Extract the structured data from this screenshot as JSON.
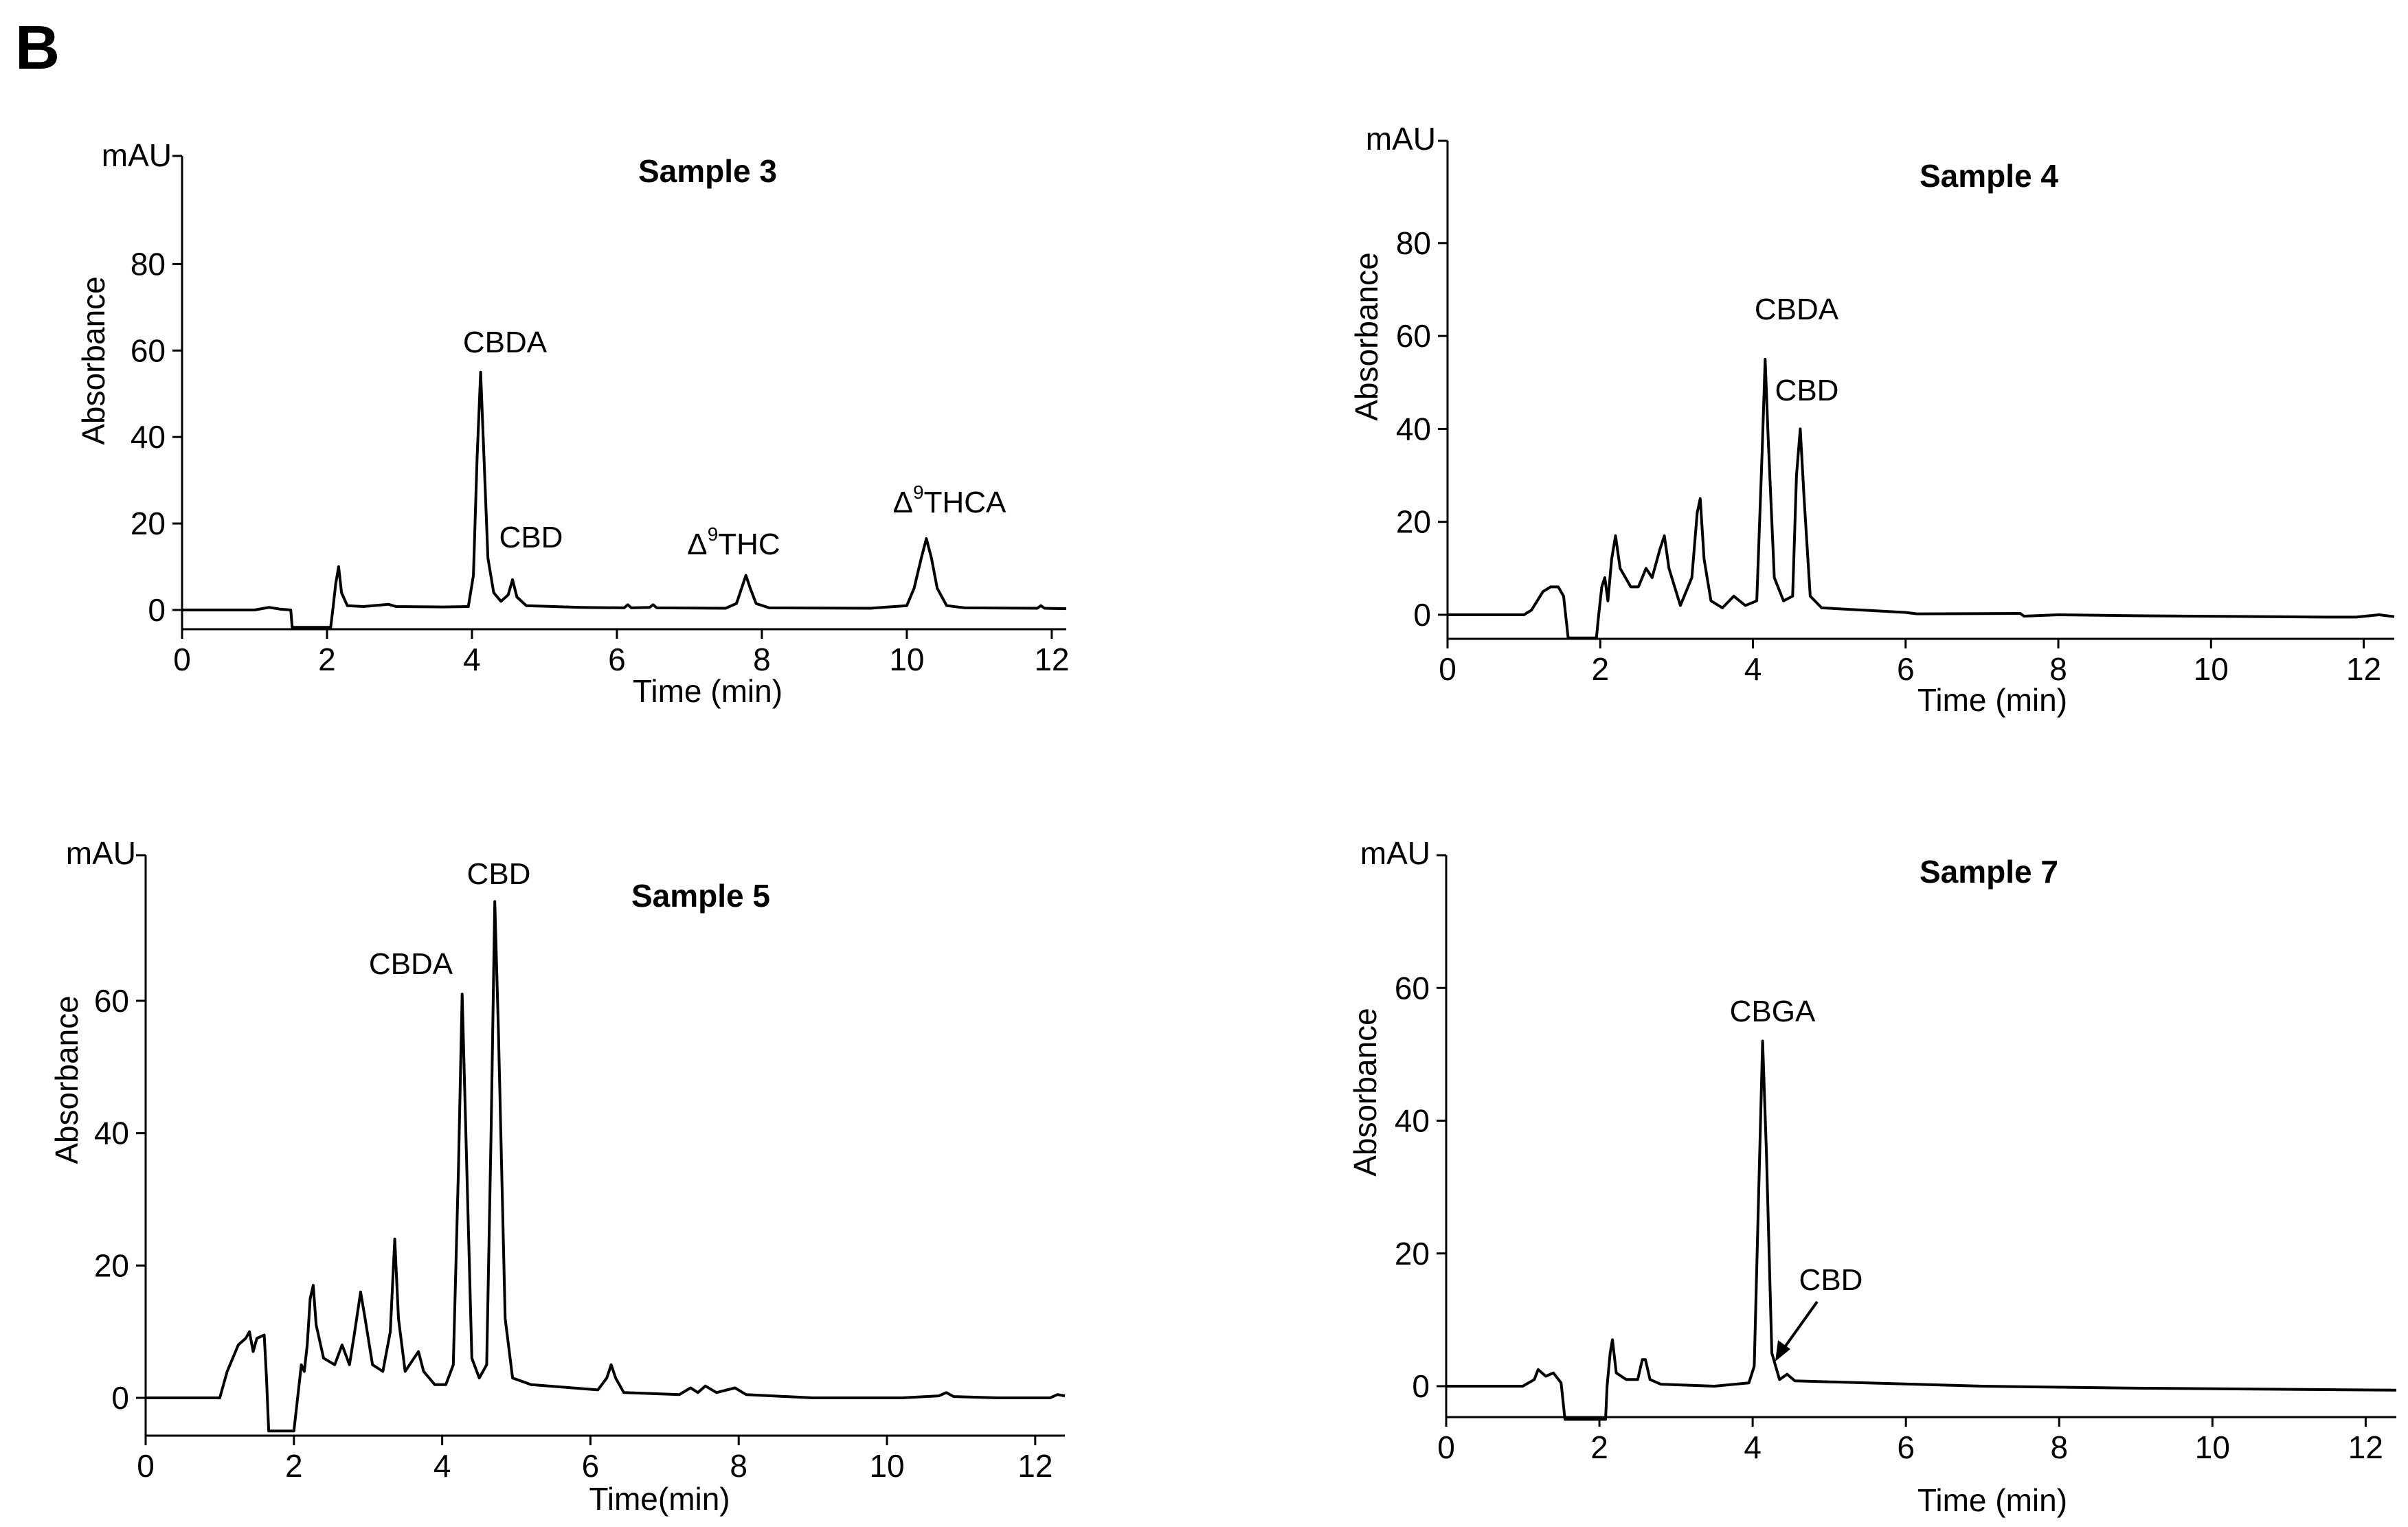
{
  "panel_letter": "B",
  "chart_data": [
    {
      "type": "line",
      "title": "Sample 3",
      "ylabel": "Absorbance",
      "yunit": "mAU",
      "xlabel": "Time (min)",
      "xlim": [
        0,
        12.2
      ],
      "ylim": [
        -4,
        105
      ],
      "xticks": [
        0,
        2,
        4,
        6,
        8,
        10,
        12
      ],
      "yticks": [
        0,
        20,
        40,
        60,
        80
      ],
      "series": [
        {
          "values": [
            [
              0,
              0
            ],
            [
              1.0,
              0
            ],
            [
              1.1,
              0.3
            ],
            [
              1.2,
              0.6
            ],
            [
              1.35,
              0.2
            ],
            [
              1.5,
              0
            ],
            [
              1.52,
              -4
            ],
            [
              2.05,
              -4
            ],
            [
              2.08,
              0
            ],
            [
              2.12,
              6
            ],
            [
              2.16,
              10
            ],
            [
              2.2,
              4
            ],
            [
              2.28,
              1
            ],
            [
              2.5,
              0.8
            ],
            [
              2.85,
              1.3
            ],
            [
              2.95,
              0.8
            ],
            [
              3.6,
              0.7
            ],
            [
              3.95,
              0.8
            ],
            [
              4.02,
              8
            ],
            [
              4.07,
              35
            ],
            [
              4.12,
              55
            ],
            [
              4.16,
              38
            ],
            [
              4.22,
              12
            ],
            [
              4.3,
              4
            ],
            [
              4.4,
              2
            ],
            [
              4.5,
              3.5
            ],
            [
              4.56,
              7
            ],
            [
              4.62,
              3
            ],
            [
              4.75,
              1
            ],
            [
              5.5,
              0.6
            ],
            [
              6.1,
              0.5
            ],
            [
              6.15,
              1.2
            ],
            [
              6.2,
              0.5
            ],
            [
              6.45,
              0.6
            ],
            [
              6.5,
              1.2
            ],
            [
              6.55,
              0.5
            ],
            [
              7.5,
              0.4
            ],
            [
              7.65,
              1.5
            ],
            [
              7.72,
              5
            ],
            [
              7.78,
              8
            ],
            [
              7.84,
              5
            ],
            [
              7.92,
              1.5
            ],
            [
              8.1,
              0.5
            ],
            [
              9.5,
              0.4
            ],
            [
              10.0,
              1
            ],
            [
              10.1,
              5
            ],
            [
              10.2,
              12
            ],
            [
              10.27,
              16.5
            ],
            [
              10.34,
              12
            ],
            [
              10.42,
              5
            ],
            [
              10.55,
              1
            ],
            [
              10.8,
              0.5
            ],
            [
              11.8,
              0.4
            ],
            [
              11.85,
              1
            ],
            [
              11.9,
              0.4
            ],
            [
              12.2,
              0.3
            ]
          ]
        }
      ],
      "annotations": [
        {
          "text": "CBDA",
          "x": 4.12,
          "y": 55
        },
        {
          "text": "CBD",
          "x": 4.58,
          "y": 7
        },
        {
          "text": "Δ9THC",
          "x": 7.8,
          "y": 8
        },
        {
          "text": "Δ9THCA",
          "x": 10.27,
          "y": 16.5
        }
      ]
    },
    {
      "type": "line",
      "title": "Sample 4",
      "ylabel": "Absorbance",
      "yunit": "mAU",
      "xlabel": "Time (min)",
      "xlim": [
        0,
        12.4
      ],
      "ylim": [
        -5,
        102
      ],
      "xticks": [
        0,
        2,
        4,
        6,
        8,
        10,
        12
      ],
      "yticks": [
        0,
        20,
        40,
        60,
        80
      ],
      "series": [
        {
          "values": [
            [
              0,
              0
            ],
            [
              1.0,
              0
            ],
            [
              1.1,
              1
            ],
            [
              1.25,
              5
            ],
            [
              1.35,
              6
            ],
            [
              1.45,
              6
            ],
            [
              1.52,
              4
            ],
            [
              1.58,
              -5
            ],
            [
              1.95,
              -5
            ],
            [
              1.98,
              0
            ],
            [
              2.02,
              6
            ],
            [
              2.06,
              8
            ],
            [
              2.1,
              3
            ],
            [
              2.15,
              12
            ],
            [
              2.2,
              17
            ],
            [
              2.26,
              10
            ],
            [
              2.4,
              6
            ],
            [
              2.5,
              6
            ],
            [
              2.6,
              10
            ],
            [
              2.68,
              8
            ],
            [
              2.78,
              14
            ],
            [
              2.84,
              17
            ],
            [
              2.9,
              10
            ],
            [
              3.05,
              2
            ],
            [
              3.2,
              8
            ],
            [
              3.27,
              22
            ],
            [
              3.31,
              25
            ],
            [
              3.36,
              12
            ],
            [
              3.45,
              3
            ],
            [
              3.6,
              1.5
            ],
            [
              3.75,
              4
            ],
            [
              3.9,
              2
            ],
            [
              4.05,
              3
            ],
            [
              4.12,
              35
            ],
            [
              4.16,
              55
            ],
            [
              4.2,
              38
            ],
            [
              4.28,
              8
            ],
            [
              4.4,
              3
            ],
            [
              4.52,
              4
            ],
            [
              4.57,
              30
            ],
            [
              4.62,
              40
            ],
            [
              4.67,
              25
            ],
            [
              4.75,
              4
            ],
            [
              4.9,
              1.5
            ],
            [
              6.0,
              0.5
            ],
            [
              6.15,
              0.2
            ],
            [
              7.5,
              0.3
            ],
            [
              7.55,
              -0.3
            ],
            [
              8.0,
              0
            ],
            [
              9.0,
              -0.2
            ],
            [
              11.5,
              -0.5
            ],
            [
              11.9,
              -0.5
            ],
            [
              12.2,
              0
            ],
            [
              12.4,
              -0.4
            ]
          ]
        }
      ],
      "annotations": [
        {
          "text": "CBDA",
          "x": 4.16,
          "y": 55
        },
        {
          "text": "CBD",
          "x": 4.62,
          "y": 40
        }
      ]
    },
    {
      "type": "line",
      "title": "Sample 5",
      "ylabel": "Absorbance",
      "yunit": "mAU",
      "xlabel": "Time(min)",
      "xlim": [
        0,
        12.4
      ],
      "ylim": [
        -5,
        82
      ],
      "xticks": [
        0,
        2,
        4,
        6,
        8,
        10,
        12
      ],
      "yticks": [
        0,
        20,
        40,
        60
      ],
      "series": [
        {
          "values": [
            [
              0,
              0
            ],
            [
              1.0,
              0
            ],
            [
              1.1,
              4
            ],
            [
              1.25,
              8
            ],
            [
              1.35,
              9
            ],
            [
              1.4,
              10
            ],
            [
              1.45,
              7
            ],
            [
              1.5,
              9
            ],
            [
              1.6,
              9.5
            ],
            [
              1.63,
              3
            ],
            [
              1.66,
              -5
            ],
            [
              2.0,
              -5
            ],
            [
              2.05,
              0
            ],
            [
              2.1,
              5
            ],
            [
              2.14,
              4
            ],
            [
              2.18,
              8
            ],
            [
              2.22,
              15
            ],
            [
              2.26,
              17
            ],
            [
              2.3,
              11
            ],
            [
              2.4,
              6
            ],
            [
              2.55,
              5
            ],
            [
              2.65,
              8
            ],
            [
              2.75,
              5
            ],
            [
              2.82,
              10
            ],
            [
              2.9,
              16
            ],
            [
              2.96,
              12
            ],
            [
              3.06,
              5
            ],
            [
              3.2,
              4
            ],
            [
              3.3,
              10
            ],
            [
              3.36,
              24
            ],
            [
              3.41,
              12
            ],
            [
              3.5,
              4
            ],
            [
              3.62,
              6
            ],
            [
              3.68,
              7
            ],
            [
              3.75,
              4
            ],
            [
              3.9,
              2
            ],
            [
              4.05,
              2
            ],
            [
              4.15,
              5
            ],
            [
              4.22,
              35
            ],
            [
              4.27,
              61
            ],
            [
              4.32,
              40
            ],
            [
              4.4,
              6
            ],
            [
              4.5,
              3
            ],
            [
              4.6,
              5
            ],
            [
              4.66,
              40
            ],
            [
              4.71,
              75
            ],
            [
              4.76,
              55
            ],
            [
              4.85,
              12
            ],
            [
              4.95,
              3
            ],
            [
              5.2,
              2
            ],
            [
              6.1,
              1.2
            ],
            [
              6.22,
              3
            ],
            [
              6.28,
              5
            ],
            [
              6.34,
              3
            ],
            [
              6.45,
              0.8
            ],
            [
              7.2,
              0.5
            ],
            [
              7.35,
              1.5
            ],
            [
              7.45,
              0.8
            ],
            [
              7.55,
              1.8
            ],
            [
              7.7,
              0.8
            ],
            [
              7.95,
              1.5
            ],
            [
              8.1,
              0.5
            ],
            [
              9.0,
              0
            ],
            [
              10.2,
              0
            ],
            [
              10.7,
              0.3
            ],
            [
              10.8,
              0.8
            ],
            [
              10.9,
              0.2
            ],
            [
              11.5,
              0
            ],
            [
              12.2,
              0
            ],
            [
              12.3,
              0.5
            ],
            [
              12.4,
              0.3
            ]
          ]
        }
      ],
      "annotations": [
        {
          "text": "CBDA",
          "x": 4.27,
          "y": 61
        },
        {
          "text": "CBD",
          "x": 4.71,
          "y": 75
        }
      ]
    },
    {
      "type": "line",
      "title": "Sample 7",
      "ylabel": "Absorbance",
      "yunit": "mAU",
      "xlabel": "Time (min)",
      "xlim": [
        0,
        12.4
      ],
      "ylim": [
        -5,
        80
      ],
      "xticks": [
        0,
        2,
        4,
        6,
        8,
        10,
        12
      ],
      "yticks": [
        0,
        20,
        40,
        60
      ],
      "series": [
        {
          "values": [
            [
              0,
              0
            ],
            [
              1.0,
              0
            ],
            [
              1.15,
              1
            ],
            [
              1.2,
              2.5
            ],
            [
              1.3,
              1.5
            ],
            [
              1.4,
              2
            ],
            [
              1.5,
              0.5
            ],
            [
              1.55,
              -5
            ],
            [
              2.08,
              -5
            ],
            [
              2.1,
              0
            ],
            [
              2.14,
              5
            ],
            [
              2.17,
              7
            ],
            [
              2.22,
              2
            ],
            [
              2.35,
              1
            ],
            [
              2.5,
              1
            ],
            [
              2.56,
              4
            ],
            [
              2.6,
              4
            ],
            [
              2.66,
              1
            ],
            [
              2.8,
              0.3
            ],
            [
              3.5,
              0
            ],
            [
              3.95,
              0.5
            ],
            [
              4.02,
              3
            ],
            [
              4.08,
              30
            ],
            [
              4.13,
              52
            ],
            [
              4.18,
              35
            ],
            [
              4.25,
              5
            ],
            [
              4.35,
              1
            ],
            [
              4.45,
              1.8
            ],
            [
              4.55,
              0.8
            ],
            [
              5.5,
              0.5
            ],
            [
              7.0,
              0
            ],
            [
              9.0,
              -0.3
            ],
            [
              12.4,
              -0.6
            ]
          ]
        }
      ],
      "annotations": [
        {
          "text": "CBGA",
          "x": 4.13,
          "y": 52
        },
        {
          "text": "CBD",
          "x": 4.4,
          "y": 1.8
        }
      ]
    }
  ]
}
